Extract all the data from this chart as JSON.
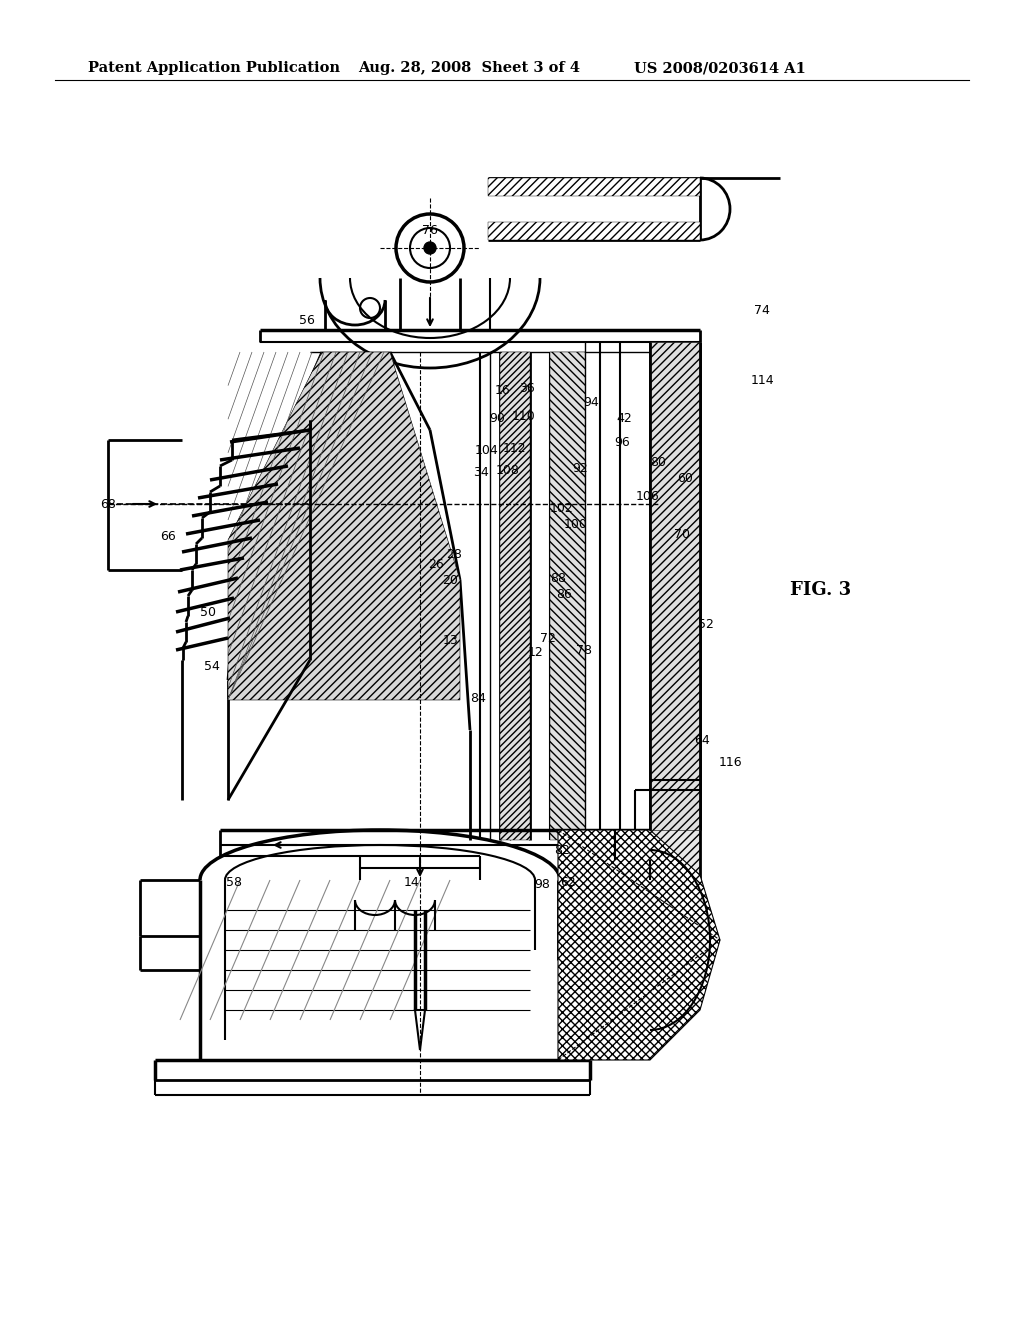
{
  "title_left": "Patent Application Publication",
  "title_center": "Aug. 28, 2008  Sheet 3 of 4",
  "title_right": "US 2008/0203614 A1",
  "fig_label": "FIG. 3",
  "background_color": "#ffffff",
  "text_color": "#000000",
  "header_fontsize": 10.5,
  "fig_label_fontsize": 13,
  "ref_labels": [
    [
      "76",
      430,
      230
    ],
    [
      "56",
      307,
      320
    ],
    [
      "74",
      762,
      310
    ],
    [
      "114",
      762,
      380
    ],
    [
      "16",
      503,
      390
    ],
    [
      "36",
      527,
      388
    ],
    [
      "90",
      497,
      418
    ],
    [
      "110",
      524,
      416
    ],
    [
      "94",
      591,
      402
    ],
    [
      "42",
      624,
      418
    ],
    [
      "96",
      622,
      442
    ],
    [
      "104",
      487,
      450
    ],
    [
      "112",
      514,
      448
    ],
    [
      "80",
      658,
      462
    ],
    [
      "60",
      685,
      478
    ],
    [
      "34",
      481,
      472
    ],
    [
      "108",
      508,
      470
    ],
    [
      "92",
      580,
      468
    ],
    [
      "106",
      648,
      496
    ],
    [
      "68",
      108,
      504
    ],
    [
      "102",
      562,
      508
    ],
    [
      "100",
      576,
      524
    ],
    [
      "66",
      168,
      536
    ],
    [
      "70",
      682,
      534
    ],
    [
      "26",
      436,
      564
    ],
    [
      "28",
      454,
      554
    ],
    [
      "20",
      450,
      580
    ],
    [
      "88",
      558,
      578
    ],
    [
      "86",
      564,
      594
    ],
    [
      "50",
      208,
      612
    ],
    [
      "52",
      706,
      624
    ],
    [
      "13",
      451,
      640
    ],
    [
      "72",
      548,
      638
    ],
    [
      "12",
      536,
      652
    ],
    [
      "78",
      584,
      650
    ],
    [
      "54",
      212,
      666
    ],
    [
      "84",
      478,
      698
    ],
    [
      "64",
      702,
      740
    ],
    [
      "116",
      730,
      762
    ],
    [
      "82",
      562,
      850
    ],
    [
      "98",
      542,
      885
    ],
    [
      "62",
      568,
      883
    ],
    [
      "58",
      234,
      883
    ],
    [
      "14",
      412,
      883
    ]
  ]
}
